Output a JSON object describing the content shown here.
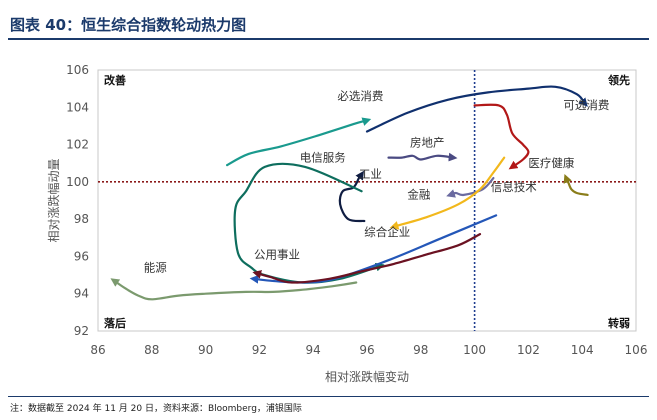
{
  "figure": {
    "title": "图表 40：恒生综合指数轮动热力图",
    "note": "注：数据截至 2024 年 11 月 20 日，资料来源：Bloomberg，浦银国际"
  },
  "chart_data": {
    "type": "line",
    "title": "",
    "xlabel": "相对涨跌幅变动",
    "ylabel": "相对涨跌幅动量",
    "xlim": [
      86,
      106
    ],
    "ylim": [
      92,
      106
    ],
    "xticks": [
      "86",
      "88",
      "90",
      "92",
      "94",
      "96",
      "98",
      "100",
      "102",
      "104",
      "106"
    ],
    "yticks": [
      "92",
      "94",
      "96",
      "98",
      "100",
      "102",
      "104",
      "106"
    ],
    "grid": false,
    "reference_lines": {
      "x": 100,
      "y": 100,
      "vertical_color": "#1f3d8f",
      "horizontal_color": "#8b1a1a"
    },
    "quadrants": {
      "top_left": "改善",
      "top_right": "领先",
      "bottom_left": "落后",
      "bottom_right": "转弱"
    },
    "series": [
      {
        "name": "可选消费",
        "color": "#10306e",
        "points": [
          [
            96,
            102.7
          ],
          [
            97.5,
            103.7
          ],
          [
            99,
            104.4
          ],
          [
            100.5,
            104.8
          ],
          [
            102,
            105
          ],
          [
            103,
            105.1
          ],
          [
            103.8,
            104.7
          ],
          [
            104.1,
            104.2
          ]
        ],
        "label_at": [
          103.3,
          103.9
        ]
      },
      {
        "name": "必选消费",
        "color": "#1a9a8e",
        "points": [
          [
            90.8,
            100.9
          ],
          [
            91.6,
            101.5
          ],
          [
            92.8,
            101.9
          ],
          [
            94.2,
            102.5
          ],
          [
            95.5,
            103.1
          ],
          [
            96,
            103.3
          ]
        ],
        "label_at": [
          94.9,
          104.4
        ]
      },
      {
        "name": "医疗健康",
        "color": "#b21818",
        "points": [
          [
            100,
            104.1
          ],
          [
            100.9,
            104.1
          ],
          [
            101.2,
            103.6
          ],
          [
            101.4,
            102.6
          ],
          [
            101.8,
            102
          ],
          [
            102,
            101.6
          ],
          [
            101.8,
            101.2
          ],
          [
            101.4,
            100.8
          ]
        ],
        "label_at": [
          102,
          100.8
        ]
      },
      {
        "name": "房地产",
        "color": "#4a4a82",
        "points": [
          [
            96.8,
            101.3
          ],
          [
            97.3,
            101.3
          ],
          [
            97.7,
            101.4
          ],
          [
            98,
            101.2
          ],
          [
            98.6,
            101.4
          ],
          [
            99.2,
            101.3
          ]
        ],
        "label_at": [
          97.6,
          101.9
        ]
      },
      {
        "name": "工业",
        "color": "#101d42",
        "points": [
          [
            95.9,
            97.9
          ],
          [
            95.3,
            98
          ],
          [
            95,
            98.8
          ],
          [
            95.1,
            99.5
          ],
          [
            95.5,
            99.7
          ],
          [
            95.7,
            100.2
          ],
          [
            95.8,
            100.4
          ]
        ],
        "label_at": [
          95.7,
          100.2
        ]
      },
      {
        "name": "金融",
        "color": "#6a6aa0",
        "points": [
          [
            100.7,
            100.2
          ],
          [
            100.3,
            99.6
          ],
          [
            99.6,
            99.3
          ],
          [
            99.3,
            99.4
          ],
          [
            99.1,
            99.3
          ]
        ],
        "label_at": [
          97.5,
          99.1
        ]
      },
      {
        "name": "信息技术",
        "color": "#8a7d1a",
        "points": [
          [
            104.2,
            99.3
          ],
          [
            103.8,
            99.4
          ],
          [
            103.6,
            99.6
          ],
          [
            103.5,
            99.9
          ],
          [
            103.4,
            100.2
          ]
        ],
        "label_at": [
          100.6,
          99.5
        ]
      },
      {
        "name": "综合企业",
        "color": "#f2b81c",
        "points": [
          [
            101.1,
            101.3
          ],
          [
            100.7,
            100.5
          ],
          [
            100.2,
            99.6
          ],
          [
            99.4,
            98.8
          ],
          [
            98.2,
            98.1
          ],
          [
            97,
            97.6
          ]
        ],
        "label_at": [
          95.9,
          97.1
        ]
      },
      {
        "name": "电信服务",
        "color": "#0e6e5e",
        "points": [
          [
            95.8,
            99.5
          ],
          [
            93.7,
            100.8
          ],
          [
            92.2,
            100.8
          ],
          [
            91.5,
            99.5
          ],
          [
            91.1,
            98.5
          ],
          [
            91.2,
            96.2
          ],
          [
            91.7,
            95.4
          ],
          [
            92.2,
            95
          ],
          [
            93.6,
            94.6
          ],
          [
            95,
            94.8
          ],
          [
            96.5,
            95.5
          ]
        ],
        "label_at": [
          93.5,
          101.1
        ]
      },
      {
        "name": "公用事业",
        "color": "#2457b8",
        "points": [
          [
            100.8,
            98.2
          ],
          [
            98.8,
            97
          ],
          [
            96.8,
            95.8
          ],
          [
            94.8,
            94.8
          ],
          [
            93.6,
            94.6
          ],
          [
            92.4,
            94.7
          ],
          [
            91.8,
            94.8
          ]
        ],
        "label_at": [
          91.8,
          95.9
        ]
      },
      {
        "name": "能源",
        "color": "#7b9a6e",
        "points": [
          [
            95.6,
            94.6
          ],
          [
            94.7,
            94.4
          ],
          [
            93.5,
            94.2
          ],
          [
            92.5,
            94.1
          ],
          [
            91.5,
            94.1
          ],
          [
            90,
            94
          ],
          [
            89,
            93.9
          ],
          [
            88,
            93.7
          ],
          [
            87.5,
            93.9
          ],
          [
            87,
            94.3
          ],
          [
            86.6,
            94.7
          ]
        ],
        "label_at": [
          87.7,
          95.2
        ]
      },
      {
        "name": "",
        "color": "#6b1222",
        "points": [
          [
            100.2,
            97.2
          ],
          [
            99.4,
            96.6
          ],
          [
            98.2,
            96.1
          ],
          [
            97,
            95.6
          ],
          [
            95.8,
            95.2
          ],
          [
            94.6,
            94.8
          ],
          [
            93.2,
            94.6
          ],
          [
            92.4,
            94.9
          ],
          [
            91.9,
            95.1
          ]
        ],
        "label_at": null
      }
    ]
  }
}
